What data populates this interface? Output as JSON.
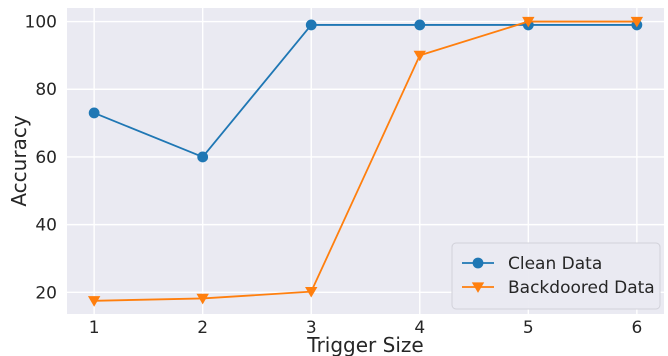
{
  "chart_data": {
    "type": "line",
    "title": "",
    "xlabel": "Trigger Size",
    "ylabel": "Accuracy",
    "x": [
      1,
      2,
      3,
      4,
      5,
      6
    ],
    "xticks": [
      "1",
      "2",
      "3",
      "4",
      "5",
      "6"
    ],
    "yticks": [
      "20",
      "40",
      "60",
      "80",
      "100"
    ],
    "xlim": [
      0.75,
      6.25
    ],
    "ylim": [
      13.6,
      104
    ],
    "grid": true,
    "background": "#eaeaf2",
    "legend_position": "lower-right",
    "series": [
      {
        "name": "Clean Data",
        "values": [
          73,
          60,
          99,
          99,
          99,
          99
        ],
        "color": "#1f77b4",
        "marker": "circle"
      },
      {
        "name": "Backdoored Data",
        "values": [
          17.5,
          18.2,
          20.2,
          90,
          100,
          100
        ],
        "color": "#ff7f0e",
        "marker": "triangle-down"
      }
    ]
  }
}
